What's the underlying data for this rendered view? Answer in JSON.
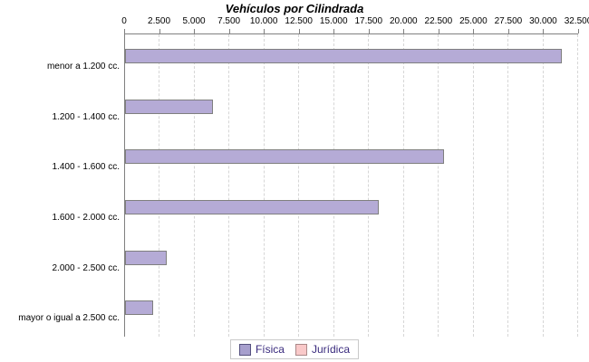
{
  "title": "Vehículos por Cilindrada",
  "colors": {
    "bar_fill": "#b5abd6",
    "bar_border": "#7f7f7f",
    "axis_line": "#808080",
    "gridline": "#d6d6d6",
    "legend_text": "#392a7d",
    "fisica_swatch": "#a79fcd",
    "juridica_swatch": "#f9c9c9"
  },
  "chart_data": {
    "type": "bar",
    "orientation": "horizontal",
    "title": "Vehículos por Cilindrada",
    "categories": [
      "menor a 1.200 cc.",
      "1.200 - 1.400 cc.",
      "1.400 - 1.600 cc.",
      "1.600 - 2.000 cc.",
      "2.000 - 2.500 cc.",
      "mayor o igual a 2.500 cc."
    ],
    "series": [
      {
        "name": "Física",
        "color": "#b5abd6",
        "values": [
          31300,
          6300,
          22900,
          18200,
          3000,
          2000
        ]
      },
      {
        "name": "Jurídica",
        "color": "#f9c9c9",
        "values": [
          0,
          0,
          0,
          0,
          0,
          0
        ]
      }
    ],
    "xlim": [
      0,
      32500
    ],
    "x_tick_labels": [
      "0",
      "2.500",
      "5.000",
      "7.500",
      "10.000",
      "12.500",
      "15.000",
      "17.500",
      "20.000",
      "22.500",
      "25.000",
      "27.500",
      "30.000",
      "32.500"
    ],
    "x_tick_values": [
      0,
      2500,
      5000,
      7500,
      10000,
      12500,
      15000,
      17500,
      20000,
      22500,
      25000,
      27500,
      30000,
      32500
    ],
    "grid": true,
    "legend_position": "bottom"
  },
  "legend": {
    "items": [
      {
        "label": "Física"
      },
      {
        "label": "Jurídica"
      }
    ]
  }
}
